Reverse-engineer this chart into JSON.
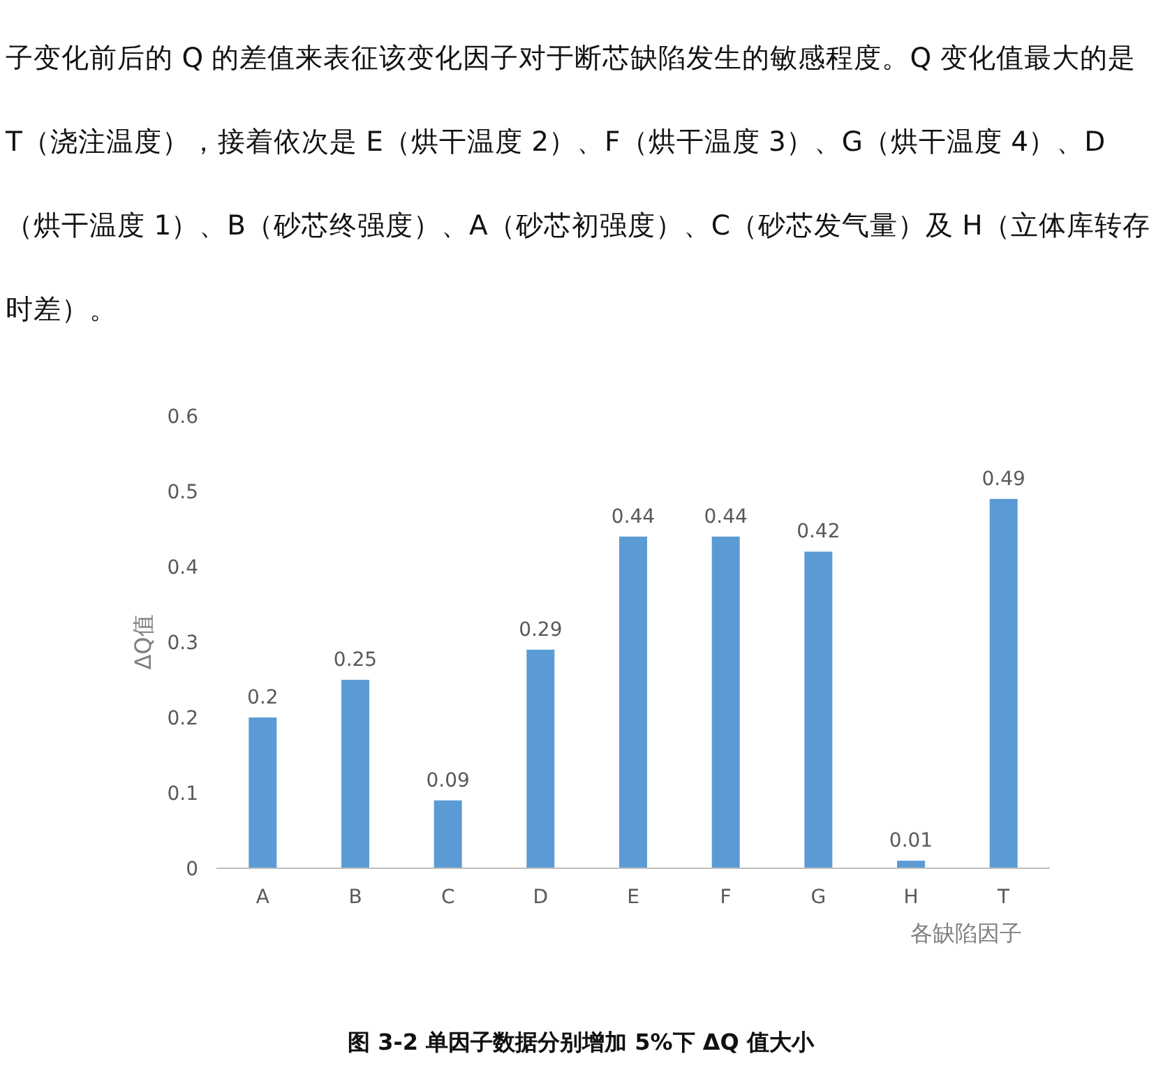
{
  "chart_data": {
    "type": "bar",
    "title": "图 3-2  单因子数据分别增加 5%下 ΔQ 值大小",
    "annotations": [
      "子变化前后的 Q 的差值来表征该变化因子对于断芯缺陷发生的敏感程度。Q 变化值最大的是 T（浇注温度），接着依次是 E（烘干温度 2）、F（烘干温度 3）、G（烘干温度 4）、D（烘干温度 1）、B（砂芯终强度）、A（砂芯初强度）、C（砂芯发气量）及 H（立体库转存时差）。"
    ],
    "xlabel": "各缺陷因子",
    "ylabel": "ΔQ值",
    "categories": [
      "A",
      "B",
      "C",
      "D",
      "E",
      "F",
      "G",
      "H",
      "T"
    ],
    "values": [
      0.2,
      0.25,
      0.09,
      0.29,
      0.44,
      0.44,
      0.42,
      0.01,
      0.49
    ],
    "color": "#5b9bd5",
    "ylim": [
      0,
      0.6
    ],
    "yticks": [
      0,
      0.1,
      0.2,
      0.3,
      0.4,
      0.5,
      0.6
    ],
    "data_labels": true
  }
}
